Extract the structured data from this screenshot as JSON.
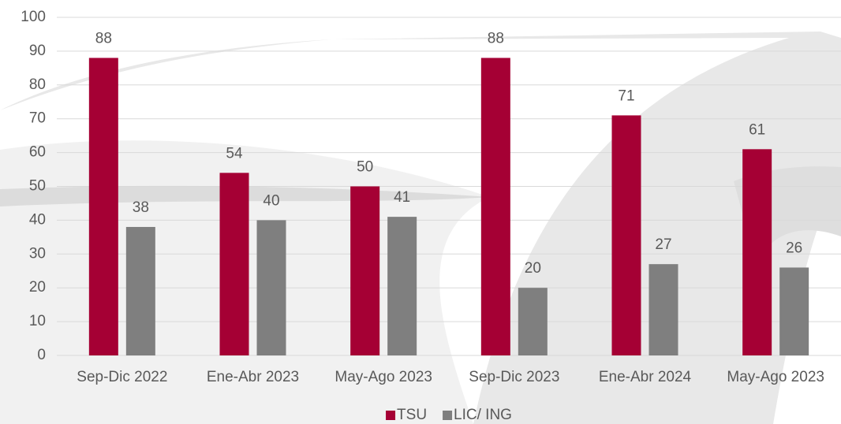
{
  "chart_data": {
    "type": "bar",
    "categories": [
      "Sep-Dic 2022",
      "Ene-Abr 2023",
      "May-Ago 2023",
      "Sep-Dic 2023",
      "Ene-Abr 2024",
      "May-Ago 2023"
    ],
    "series": [
      {
        "name": "TSU",
        "color": "#a50034",
        "values": [
          88,
          54,
          50,
          88,
          71,
          61
        ]
      },
      {
        "name": "LIC/ ING",
        "color": "#7f7f7f",
        "values": [
          38,
          40,
          41,
          20,
          27,
          26
        ]
      }
    ],
    "ylim": [
      0,
      100
    ],
    "yticks": [
      0,
      10,
      20,
      30,
      40,
      50,
      60,
      70,
      80,
      90,
      100
    ],
    "grid": true,
    "legend": "bottom"
  }
}
